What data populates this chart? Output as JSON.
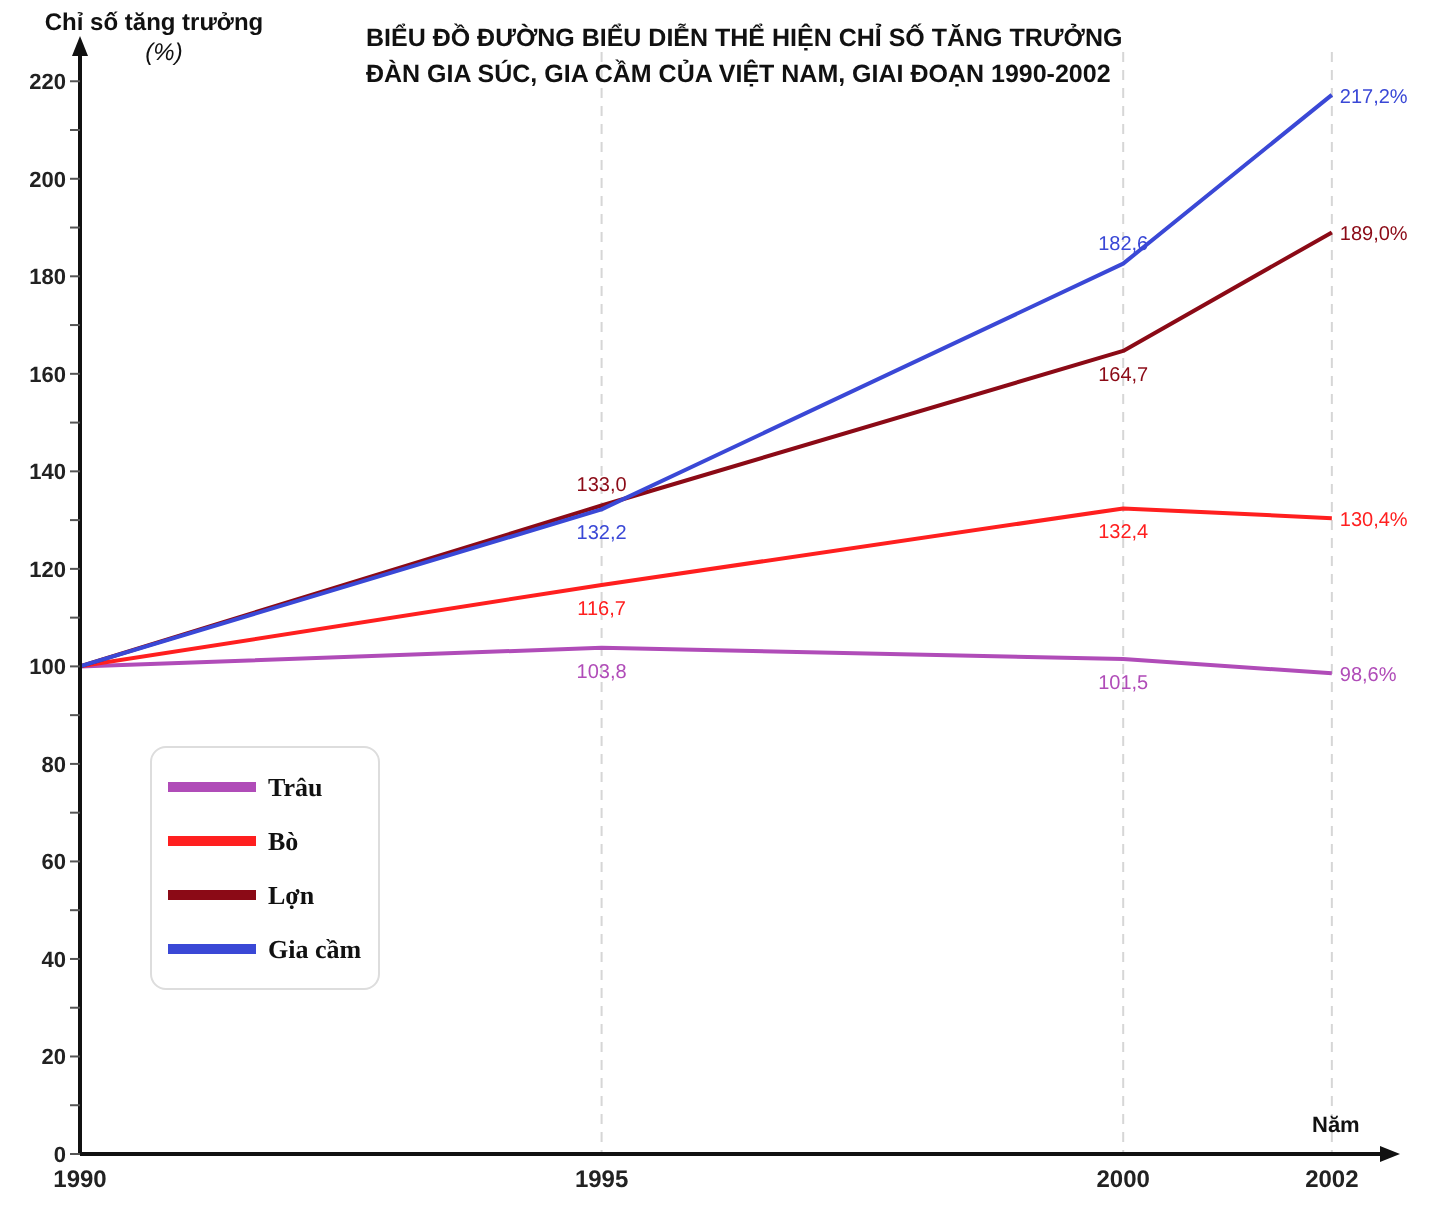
{
  "chart_data": {
    "type": "line",
    "title": "BIỂU ĐỒ ĐƯỜNG BIỂU DIỄN THỂ HIỆN CHỈ SỐ TĂNG TRƯỞNG\nĐÀN GIA SÚC, GIA CẦM CỦA VIỆT NAM, GIAI ĐOẠN 1990-2002",
    "xlabel": "Năm",
    "ylabel": "Chỉ số tăng trưởng\n(%)",
    "x": [
      1990,
      1995,
      2000,
      2002
    ],
    "xlim": [
      1990,
      2002.5
    ],
    "xticks": [
      1990,
      1995,
      2000,
      2002
    ],
    "ylim": [
      0,
      226
    ],
    "yticks": [
      0,
      {
        "value": 10,
        "label": null
      },
      20,
      {
        "value": 30,
        "label": null
      },
      40,
      {
        "value": 50,
        "label": null
      },
      60,
      {
        "value": 70,
        "label": null
      },
      80,
      {
        "value": 90,
        "label": null
      },
      100,
      {
        "value": 110,
        "label": null
      },
      120,
      {
        "value": 130,
        "label": null
      },
      140,
      {
        "value": 150,
        "label": null
      },
      160,
      {
        "value": 170,
        "label": null
      },
      180,
      {
        "value": 190,
        "label": null
      },
      200,
      {
        "value": 210,
        "label": null
      },
      220
    ],
    "grid": "x",
    "legend": "left",
    "series": [
      {
        "name": "Trâu",
        "color": "#b04cb8",
        "values": [
          100,
          103.8,
          101.5,
          98.6
        ],
        "value_labels": [
          null,
          "103,8",
          "101,5",
          "98,6%"
        ]
      },
      {
        "name": "Bò",
        "color": "#ff1f1f",
        "values": [
          100,
          116.7,
          132.4,
          130.4
        ],
        "value_labels": [
          null,
          "116,7",
          "132,4",
          "130,4%"
        ]
      },
      {
        "name": "Lợn",
        "color": "#8b0a16",
        "values": [
          100,
          133.0,
          164.7,
          189.0
        ],
        "value_labels": [
          null,
          "133,0",
          "164,7",
          "189,0%"
        ]
      },
      {
        "name": "Gia cầm",
        "color": "#3a48d6",
        "values": [
          100,
          132.2,
          182.6,
          217.2
        ],
        "value_labels": [
          null,
          "132,2",
          "182,6",
          "217,2%"
        ]
      }
    ]
  }
}
